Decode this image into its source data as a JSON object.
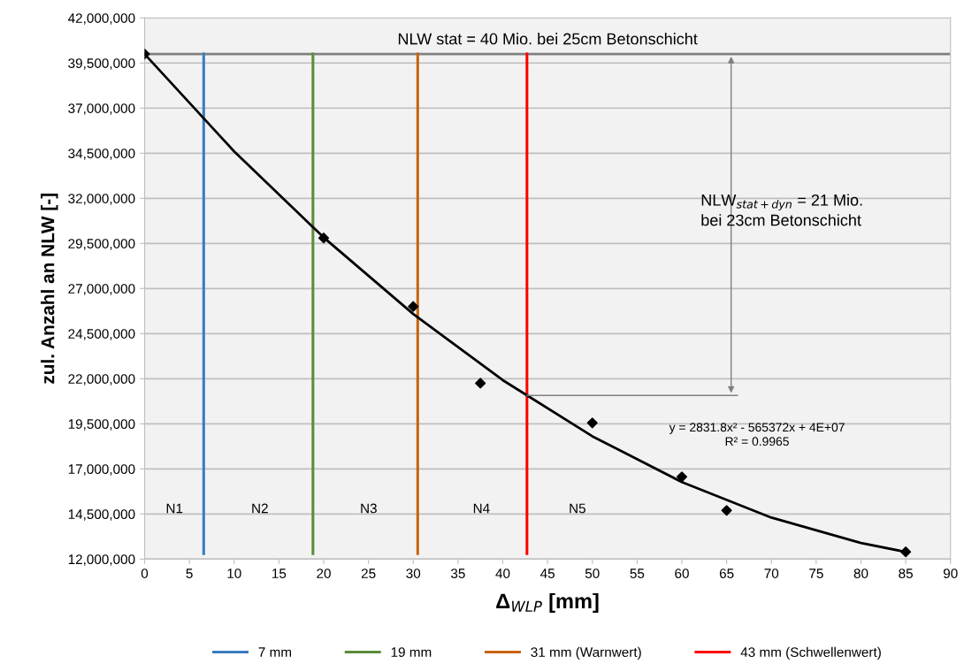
{
  "chart_data": {
    "type": "line",
    "xlabel": "Δ$_{WLP}$ [mm]",
    "ylabel": "zul. Anzahl an NLW [-]",
    "xlim": [
      0,
      90
    ],
    "xticks": [
      0,
      5,
      10,
      15,
      20,
      25,
      30,
      35,
      40,
      45,
      50,
      55,
      60,
      65,
      70,
      75,
      80,
      85,
      90
    ],
    "ylim": [
      12000000,
      42000000
    ],
    "yticks": [
      {
        "value": 12000000,
        "label": "12,000,000"
      },
      {
        "value": 14500000,
        "label": "14,500,000"
      },
      {
        "value": 17000000,
        "label": "17,000,000"
      },
      {
        "value": 19500000,
        "label": "19,500,000"
      },
      {
        "value": 22000000,
        "label": "22,000,000"
      },
      {
        "value": 24500000,
        "label": "24,500,000"
      },
      {
        "value": 27000000,
        "label": "27,000,000"
      },
      {
        "value": 29500000,
        "label": "29,500,000"
      },
      {
        "value": 32000000,
        "label": "32,000,000"
      },
      {
        "value": 34500000,
        "label": "34,500,000"
      },
      {
        "value": 37000000,
        "label": "37,000,000"
      },
      {
        "value": 39500000,
        "label": "39,500,000"
      },
      {
        "value": 42000000,
        "label": "42,000,000"
      }
    ],
    "grid": "y",
    "legend": "bottom",
    "series": [
      {
        "type": "scatter",
        "marker": "diamond",
        "color": "#000000",
        "x": [
          0,
          20,
          30,
          37.5,
          50,
          60,
          65,
          85
        ],
        "values": [
          40000000,
          29800000,
          26000000,
          21750000,
          19550000,
          16560000,
          14700000,
          12400000
        ]
      },
      {
        "color": "#000000",
        "x": [
          0,
          10,
          20,
          30,
          40,
          50,
          60,
          70,
          80,
          85
        ],
        "values": [
          40000000,
          34600000,
          29830000,
          25590000,
          21920000,
          18810000,
          16270000,
          14300000,
          12890000,
          12400000
        ]
      },
      {
        "name": "7 mm",
        "color": "#3a7cc0",
        "x": [
          6.6,
          6.6
        ],
        "values": [
          12300000,
          40000000
        ]
      },
      {
        "name": "19 mm",
        "color": "#5b8c3a",
        "x": [
          18.8,
          18.8
        ],
        "values": [
          12300000,
          40000000
        ]
      },
      {
        "name": "31 mm (Warnwert)",
        "color": "#c8640f",
        "x": [
          30.5,
          30.5
        ],
        "values": [
          12300000,
          40000000
        ]
      },
      {
        "name": "43 mm (Schwellenwert)",
        "color": "#ff0000",
        "x": [
          42.7,
          42.7
        ],
        "values": [
          12300000,
          40000000
        ]
      },
      {
        "color": "#808080",
        "x": [
          42.7,
          66.2
        ],
        "values": [
          21070000,
          21070000
        ]
      }
    ],
    "ref_lines": [
      {
        "axis": "y",
        "value": 40000000,
        "color": "#808080"
      }
    ],
    "annotations": [
      "NLW stat = 40 Mio. bei 25cm Betonschicht",
      "NLW$_{stat+dyn}$ = 21 Mio.\nbei 23cm Betonschicht",
      "y = 2831.8x² - 565372x + 4E+07\nR² = 0.9965",
      "N1",
      "N2",
      "N3",
      "N4",
      "N5"
    ]
  }
}
